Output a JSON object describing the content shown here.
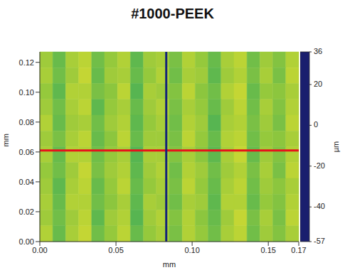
{
  "chart_data": {
    "type": "heatmap",
    "title": "#1000-PEEK",
    "x_label": "mm",
    "y_label": "mm",
    "xlim": [
      0,
      0.17
    ],
    "xticks": [
      {
        "value": 0,
        "label": "0.00"
      },
      {
        "value": 0.05,
        "label": "0.05"
      },
      {
        "value": 0.1,
        "label": "0.10"
      },
      {
        "value": 0.15,
        "label": "0.15"
      },
      {
        "value": 0.17,
        "label": "0.17"
      }
    ],
    "ylim": [
      0,
      0.127
    ],
    "yticks": [
      {
        "value": 0,
        "label": "0.00"
      },
      {
        "value": 0.02,
        "label": "0.02"
      },
      {
        "value": 0.04,
        "label": "0.04"
      },
      {
        "value": 0.06,
        "label": "0.06"
      },
      {
        "value": 0.08,
        "label": "0.08"
      },
      {
        "value": 0.1,
        "label": "0.10"
      },
      {
        "value": 0.12,
        "label": "0.12"
      }
    ],
    "grid": false,
    "cells": [
      [
        2,
        -4,
        3,
        5,
        -3,
        1,
        4,
        -5,
        2,
        3,
        -2,
        4,
        1,
        -4,
        3,
        5,
        -3,
        2,
        -1,
        4
      ],
      [
        3,
        -3,
        2,
        6,
        -4,
        2,
        3,
        -4,
        1,
        4,
        -3,
        3,
        2,
        -5,
        2,
        4,
        -2,
        3,
        -2,
        5
      ],
      [
        1,
        -5,
        4,
        4,
        -2,
        0,
        5,
        -6,
        3,
        2,
        -1,
        5,
        0,
        -3,
        4,
        6,
        -4,
        1,
        0,
        3
      ],
      [
        2,
        -3,
        3,
        5,
        -5,
        1,
        3,
        -4,
        2,
        4,
        -2,
        3,
        1,
        -4,
        2,
        5,
        -3,
        3,
        -1,
        4
      ],
      [
        4,
        -4,
        2,
        3,
        -3,
        2,
        4,
        -5,
        1,
        3,
        -3,
        4,
        2,
        -6,
        3,
        4,
        -2,
        2,
        -2,
        5
      ],
      [
        2,
        -2,
        3,
        5,
        -4,
        0,
        5,
        -4,
        2,
        2,
        -2,
        5,
        1,
        -4,
        4,
        5,
        -3,
        1,
        0,
        3
      ],
      [
        3,
        -4,
        4,
        4,
        -3,
        1,
        3,
        -6,
        3,
        3,
        -1,
        3,
        0,
        -5,
        3,
        6,
        -4,
        2,
        -1,
        4
      ],
      [
        1,
        -3,
        2,
        6,
        -2,
        2,
        4,
        -5,
        2,
        4,
        -3,
        4,
        2,
        -3,
        2,
        4,
        -2,
        3,
        -2,
        5
      ],
      [
        2,
        -5,
        3,
        5,
        -4,
        1,
        5,
        -4,
        1,
        3,
        -2,
        5,
        1,
        -4,
        3,
        5,
        -3,
        2,
        0,
        3
      ],
      [
        3,
        -4,
        4,
        4,
        -3,
        0,
        3,
        -5,
        3,
        2,
        -3,
        3,
        2,
        -5,
        4,
        4,
        -4,
        1,
        -1,
        4
      ],
      [
        2,
        -3,
        2,
        5,
        -5,
        2,
        4,
        -6,
        2,
        4,
        -1,
        4,
        0,
        -4,
        2,
        6,
        -2,
        3,
        -2,
        5
      ],
      [
        4,
        -4,
        3,
        6,
        -3,
        1,
        5,
        -4,
        1,
        3,
        -2,
        4,
        1,
        -3,
        3,
        5,
        -3,
        2,
        -1,
        3
      ]
    ],
    "colorbar": {
      "range": [
        -57,
        36
      ],
      "ticks": [
        -57,
        -40,
        -20,
        0,
        20,
        36
      ],
      "label": "µm"
    },
    "profile_lines": [
      {
        "axis": "y",
        "value": 0.061,
        "color": "#e8101a"
      },
      {
        "axis": "x",
        "value": 0.083,
        "color": "#14237a"
      }
    ]
  }
}
